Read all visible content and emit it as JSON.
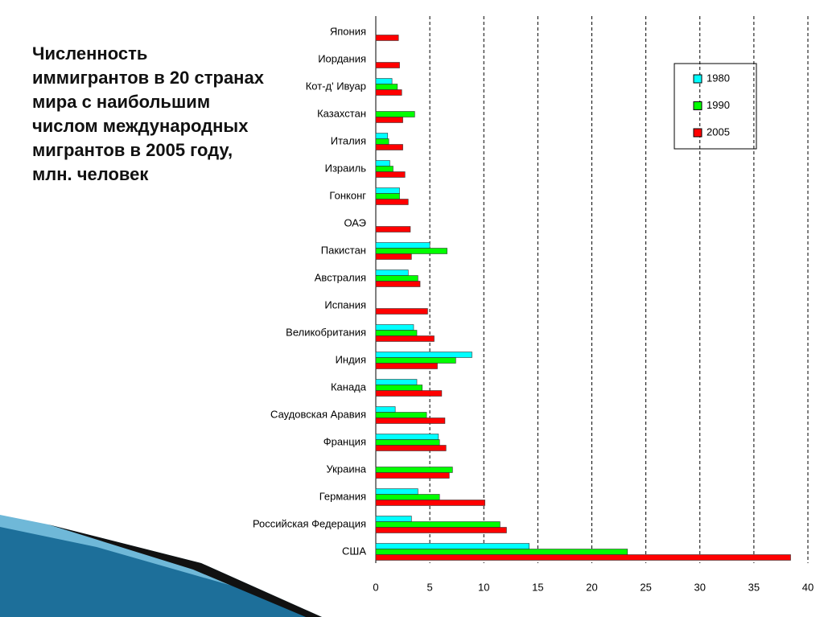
{
  "chart_data": {
    "type": "bar",
    "orientation": "horizontal",
    "title": "Численность иммигрантов в 20 странах мира с наибольшим числом международных мигрантов в 2005 году, млн. человек",
    "categories": [
      "Япония",
      "Иордания",
      "Кот-д' Ивуар",
      "Казахстан",
      "Италия",
      "Израиль",
      "Гонконг",
      "ОАЭ",
      "Пакистан",
      "Австралия",
      "Испания",
      "Великобритания",
      "Индия",
      "Канада",
      "Саудовская Аравия",
      "Франция",
      "Украина",
      "Германия",
      "Российская Федерация",
      "США"
    ],
    "series": [
      {
        "name": "1980",
        "color": "#00ffff",
        "values": [
          null,
          null,
          1.5,
          null,
          1.1,
          1.3,
          2.2,
          null,
          5.0,
          3.0,
          null,
          3.5,
          8.9,
          3.8,
          1.8,
          5.8,
          null,
          3.9,
          3.3,
          14.2
        ]
      },
      {
        "name": "1990",
        "color": "#00ff00",
        "values": [
          null,
          null,
          2.0,
          3.6,
          1.2,
          1.6,
          2.2,
          null,
          6.6,
          3.9,
          null,
          3.8,
          7.4,
          4.3,
          4.7,
          5.9,
          7.1,
          5.9,
          11.5,
          23.3
        ]
      },
      {
        "name": "2005",
        "color": "#ff0000",
        "values": [
          2.1,
          2.2,
          2.4,
          2.5,
          2.5,
          2.7,
          3.0,
          3.2,
          3.3,
          4.1,
          4.8,
          5.4,
          5.7,
          6.1,
          6.4,
          6.5,
          6.8,
          10.1,
          12.1,
          38.4
        ]
      }
    ],
    "xlim": [
      0,
      40
    ],
    "xticks": [
      0,
      5,
      10,
      15,
      20,
      25,
      30,
      35,
      40
    ],
    "grid": true,
    "legend": "upper right"
  }
}
